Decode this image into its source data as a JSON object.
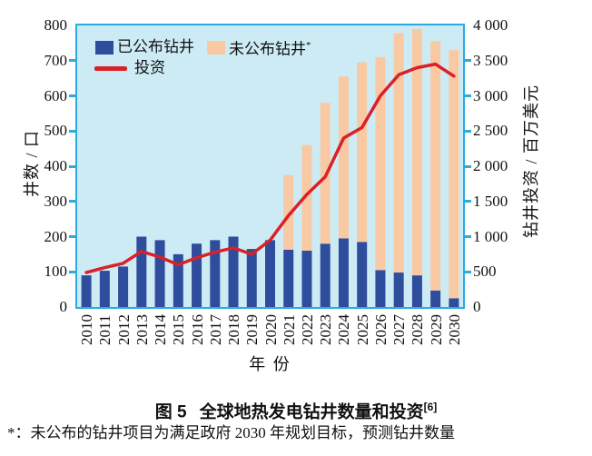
{
  "figure": {
    "caption_prefix": "图 5",
    "caption_title": "全球地热发电钻井数量和投资",
    "caption_ref": "[6]",
    "footnote_marker": "*：",
    "footnote_text": "未公布的钻井项目为满足政府 2030 年规划目标，预测钻井数量"
  },
  "colors": {
    "announced_bar": "#2e4d9c",
    "unannounced_bar": "#f9c9a4",
    "investment_line": "#da2128",
    "plot_background": "#cdebf5",
    "axis_frame": "#2aabe1",
    "text": "#111111"
  },
  "chart_data": {
    "type": "bar",
    "subtype": "stacked bars with overlaid line, dual y-axes",
    "categories": [
      "2010",
      "2011",
      "2012",
      "2013",
      "2014",
      "2015",
      "2016",
      "2017",
      "2018",
      "2019",
      "2020",
      "2021",
      "2022",
      "2023",
      "2024",
      "2025",
      "2026",
      "2027",
      "2028",
      "2029",
      "2030"
    ],
    "series": [
      {
        "name": "已公布钻井",
        "type": "bar",
        "stack": true,
        "axis": "left",
        "color": "#2e4d9c",
        "values": [
          90,
          103,
          115,
          200,
          190,
          150,
          180,
          190,
          200,
          165,
          190,
          163,
          160,
          180,
          195,
          185,
          105,
          98,
          90,
          47,
          25
        ]
      },
      {
        "name": "未公布钻井",
        "type": "bar",
        "stack": true,
        "axis": "left",
        "color": "#f9c9a4",
        "values": [
          0,
          0,
          0,
          0,
          0,
          0,
          0,
          0,
          0,
          0,
          0,
          212,
          300,
          400,
          460,
          510,
          605,
          680,
          700,
          708,
          705
        ]
      },
      {
        "name": "投资",
        "type": "line",
        "axis": "right",
        "color": "#da2128",
        "values": [
          490,
          560,
          620,
          790,
          710,
          600,
          700,
          780,
          840,
          750,
          950,
          1300,
          1600,
          1850,
          2400,
          2550,
          3000,
          3300,
          3400,
          3450,
          3280
        ]
      }
    ],
    "legend_star": "*",
    "title": "",
    "xlabel": "年 份",
    "ylabel_left": "井数 / 口",
    "ylabel_right": "钻井投资 / 百万美元",
    "ylim_left": [
      0,
      800
    ],
    "ylim_right": [
      0,
      4000
    ],
    "left_tick_labels": [
      "800",
      "700",
      "600",
      "500",
      "400",
      "300",
      "200",
      "100",
      "0"
    ],
    "right_tick_labels": [
      "4 000",
      "3 500",
      "3 000",
      "2 500",
      "2 000",
      "1 500",
      "1 000",
      "500",
      "0"
    ],
    "grid": false,
    "legend_position": "inside top-left"
  }
}
